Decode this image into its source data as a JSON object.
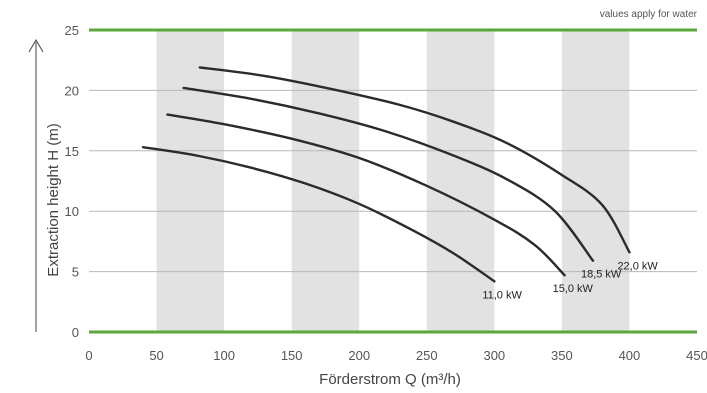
{
  "chart_data": {
    "type": "line",
    "note": "values apply for water",
    "xlabel": "Förderstrom Q (m³/h)",
    "ylabel": "Extraction height H (m)",
    "xlim": [
      0,
      450
    ],
    "ylim": [
      0,
      25
    ],
    "xticks": [
      0,
      50,
      100,
      150,
      200,
      250,
      300,
      350,
      400,
      450
    ],
    "yticks": [
      0,
      5,
      10,
      15,
      20,
      25
    ],
    "grid": "horizontal",
    "shaded_bands": [
      [
        50,
        100
      ],
      [
        150,
        200
      ],
      [
        250,
        300
      ],
      [
        350,
        400
      ]
    ],
    "series": [
      {
        "name": "11,0 kW",
        "x": [
          40,
          80,
          120,
          160,
          200,
          240,
          270,
          300
        ],
        "y": [
          15.3,
          14.6,
          13.6,
          12.3,
          10.6,
          8.4,
          6.5,
          4.2
        ]
      },
      {
        "name": "15,0 kW",
        "x": [
          58,
          100,
          150,
          200,
          250,
          300,
          330,
          352
        ],
        "y": [
          18.0,
          17.2,
          16.0,
          14.4,
          12.1,
          9.3,
          7.2,
          4.7
        ]
      },
      {
        "name": "18,5 kW",
        "x": [
          70,
          120,
          170,
          220,
          270,
          310,
          345,
          373
        ],
        "y": [
          20.2,
          19.3,
          18.1,
          16.6,
          14.6,
          12.6,
          10.0,
          5.9
        ]
      },
      {
        "name": "22,0 kW",
        "x": [
          82,
          130,
          180,
          230,
          270,
          310,
          350,
          380,
          400
        ],
        "y": [
          21.9,
          21.2,
          20.1,
          18.8,
          17.4,
          15.6,
          13.0,
          10.5,
          6.6
        ]
      }
    ],
    "colors": {
      "line": "#2b2b2b",
      "band": "#e2e2e2",
      "grid": "#b8b8b8",
      "bound": "#5aa83a",
      "axis": "#444444"
    }
  }
}
